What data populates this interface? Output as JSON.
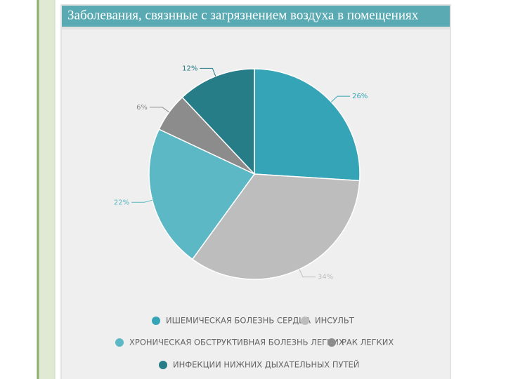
{
  "chart_data": {
    "type": "pie",
    "title": "Заболевания, связнные с загрязнением воздуха в помещениях",
    "categories": [
      "ИШЕМИЧЕСКАЯ БОЛЕЗНЬ СЕРДЦА",
      "ИНСУЛЬТ",
      "ХРОНИЧЕСКАЯ ОБСТРУКТИВНАЯ БОЛЕЗНЬ ЛЕГКИХ",
      "РАК ЛЕГКИХ",
      "ИНФЕКЦИИ НИЖНИХ ДЫХАТЕЛЬНЫХ ПУТЕЙ"
    ],
    "values": [
      26,
      34,
      22,
      6,
      12
    ],
    "value_labels": [
      "26%",
      "34%",
      "22%",
      "6%",
      "12%"
    ],
    "colors": [
      "#35a4b6",
      "#bdbdbd",
      "#5bb8c4",
      "#8c8c8c",
      "#267c87"
    ],
    "legend": "bottom"
  }
}
